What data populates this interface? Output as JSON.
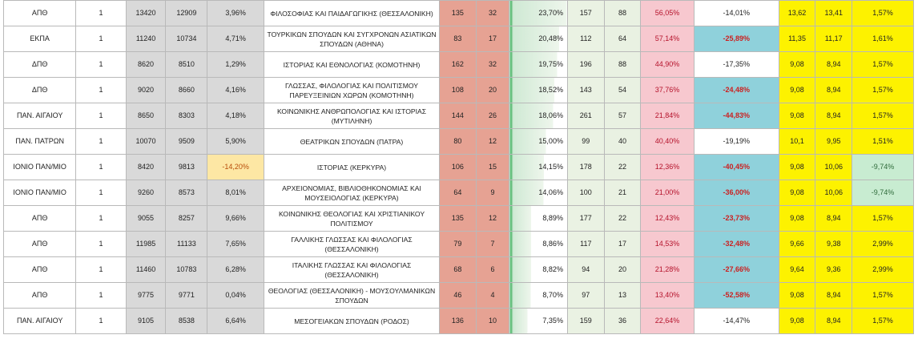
{
  "rows": [
    {
      "uni": "ΑΠΘ",
      "n": "1",
      "b1": "13420",
      "b2": "12909",
      "pct1": "3,96%",
      "dept": "ΦΙΛΟΣΟΦΙΑΣ ΚΑΙ ΠΑΙΔΑΓΩΓΙΚΗΣ (ΘΕΣΣΑΛΟΝΙΚΗ)",
      "a1": "135",
      "a2": "32",
      "pct2": "23,70%",
      "c1": "157",
      "c2": "88",
      "pct3": "56,05%",
      "chg": "-14,01%",
      "y1": "13,62",
      "y2": "13,41",
      "ypct": "1,57%"
    },
    {
      "uni": "ΕΚΠΑ",
      "n": "1",
      "b1": "11240",
      "b2": "10734",
      "pct1": "4,71%",
      "dept": "ΤΟΥΡΚΙΚΩΝ ΣΠΟΥΔΩΝ ΚΑΙ ΣΥΓΧΡΟΝΩΝ ΑΣΙΑΤΙΚΩΝ ΣΠΟΥΔΩΝ (ΑΘΗΝΑ)",
      "a1": "83",
      "a2": "17",
      "pct2": "20,48%",
      "c1": "112",
      "c2": "64",
      "pct3": "57,14%",
      "chg": "-25,89%",
      "y1": "11,35",
      "y2": "11,17",
      "ypct": "1,61%"
    },
    {
      "uni": "ΔΠΘ",
      "n": "1",
      "b1": "8620",
      "b2": "8510",
      "pct1": "1,29%",
      "dept": "ΙΣΤΟΡΙΑΣ ΚΑΙ ΕΘΝΟΛΟΓΙΑΣ (ΚΟΜΟΤΗΝΗ)",
      "a1": "162",
      "a2": "32",
      "pct2": "19,75%",
      "c1": "196",
      "c2": "88",
      "pct3": "44,90%",
      "chg": "-17,35%",
      "y1": "9,08",
      "y2": "8,94",
      "ypct": "1,57%"
    },
    {
      "uni": "ΔΠΘ",
      "n": "1",
      "b1": "9020",
      "b2": "8660",
      "pct1": "4,16%",
      "dept": "ΓΛΩΣΣΑΣ, ΦΙΛΟΛΟΓΙΑΣ ΚΑΙ ΠΟΛΙΤΙΣΜΟΥ ΠΑΡΕΥΞΕΙΝΙΩΝ ΧΩΡΩΝ (ΚΟΜΟΤΗΝΗ)",
      "a1": "108",
      "a2": "20",
      "pct2": "18,52%",
      "c1": "143",
      "c2": "54",
      "pct3": "37,76%",
      "chg": "-24,48%",
      "y1": "9,08",
      "y2": "8,94",
      "ypct": "1,57%"
    },
    {
      "uni": "ΠΑΝ. ΑΙΓΑΙΟΥ",
      "n": "1",
      "b1": "8650",
      "b2": "8303",
      "pct1": "4,18%",
      "dept": "ΚΟΙΝΩΝΙΚΗΣ ΑΝΘΡΩΠΟΛΟΓΙΑΣ ΚΑΙ ΙΣΤΟΡΙΑΣ (ΜΥΤΙΛΗΝΗ)",
      "a1": "144",
      "a2": "26",
      "pct2": "18,06%",
      "c1": "261",
      "c2": "57",
      "pct3": "21,84%",
      "chg": "-44,83%",
      "y1": "9,08",
      "y2": "8,94",
      "ypct": "1,57%"
    },
    {
      "uni": "ΠΑΝ. ΠΑΤΡΩΝ",
      "n": "1",
      "b1": "10070",
      "b2": "9509",
      "pct1": "5,90%",
      "dept": "ΘΕΑΤΡΙΚΩΝ ΣΠΟΥΔΩΝ (ΠΑΤΡΑ)",
      "a1": "80",
      "a2": "12",
      "pct2": "15,00%",
      "c1": "99",
      "c2": "40",
      "pct3": "40,40%",
      "chg": "-19,19%",
      "y1": "10,1",
      "y2": "9,95",
      "ypct": "1,51%"
    },
    {
      "uni": "ΙΟΝΙΟ ΠΑΝ/ΜΙΟ",
      "n": "1",
      "b1": "8420",
      "b2": "9813",
      "pct1": "-14,20%",
      "dept": "ΙΣΤΟΡΙΑΣ (ΚΕΡΚΥΡΑ)",
      "a1": "106",
      "a2": "15",
      "pct2": "14,15%",
      "c1": "178",
      "c2": "22",
      "pct3": "12,36%",
      "chg": "-40,45%",
      "y1": "9,08",
      "y2": "10,06",
      "ypct": "-9,74%"
    },
    {
      "uni": "ΙΟΝΙΟ ΠΑΝ/ΜΙΟ",
      "n": "1",
      "b1": "9260",
      "b2": "8573",
      "pct1": "8,01%",
      "dept": "ΑΡΧΕΙΟΝΟΜΙΑΣ, ΒΙΒΛΙΟΘΗΚΟΝΟΜΙΑΣ ΚΑΙ ΜΟΥΣΕΙΟΛΟΓΙΑΣ (ΚΕΡΚΥΡΑ)",
      "a1": "64",
      "a2": "9",
      "pct2": "14,06%",
      "c1": "100",
      "c2": "21",
      "pct3": "21,00%",
      "chg": "-36,00%",
      "y1": "9,08",
      "y2": "10,06",
      "ypct": "-9,74%"
    },
    {
      "uni": "ΑΠΘ",
      "n": "1",
      "b1": "9055",
      "b2": "8257",
      "pct1": "9,66%",
      "dept": "ΚΟΙΝΩΝΙΚΗΣ ΘΕΟΛΟΓΙΑΣ ΚΑΙ ΧΡΙΣΤΙΑΝΙΚΟΥ ΠΟΛΙΤΙΣΜΟΥ",
      "a1": "135",
      "a2": "12",
      "pct2": "8,89%",
      "c1": "177",
      "c2": "22",
      "pct3": "12,43%",
      "chg": "-23,73%",
      "y1": "9,08",
      "y2": "8,94",
      "ypct": "1,57%"
    },
    {
      "uni": "ΑΠΘ",
      "n": "1",
      "b1": "11985",
      "b2": "11133",
      "pct1": "7,65%",
      "dept": "ΓΑΛΛΙΚΗΣ ΓΛΩΣΣΑΣ ΚΑΙ ΦΙΛΟΛΟΓΙΑΣ (ΘΕΣΣΑΛΟΝΙΚΗ)",
      "a1": "79",
      "a2": "7",
      "pct2": "8,86%",
      "c1": "117",
      "c2": "17",
      "pct3": "14,53%",
      "chg": "-32,48%",
      "y1": "9,66",
      "y2": "9,38",
      "ypct": "2,99%"
    },
    {
      "uni": "ΑΠΘ",
      "n": "1",
      "b1": "11460",
      "b2": "10783",
      "pct1": "6,28%",
      "dept": "ΙΤΑΛΙΚΗΣ ΓΛΩΣΣΑΣ ΚΑΙ ΦΙΛΟΛΟΓΙΑΣ (ΘΕΣΣΑΛΟΝΙΚΗ)",
      "a1": "68",
      "a2": "6",
      "pct2": "8,82%",
      "c1": "94",
      "c2": "20",
      "pct3": "21,28%",
      "chg": "-27,66%",
      "y1": "9,64",
      "y2": "9,36",
      "ypct": "2,99%"
    },
    {
      "uni": "ΑΠΘ",
      "n": "1",
      "b1": "9775",
      "b2": "9771",
      "pct1": "0,04%",
      "dept": "ΘΕΟΛΟΓΙΑΣ (ΘΕΣΣΑΛΟΝΙΚΗ) - ΜΟΥΣΟΥΛΜΑΝΙΚΩΝ ΣΠΟΥΔΩΝ",
      "a1": "46",
      "a2": "4",
      "pct2": "8,70%",
      "c1": "97",
      "c2": "13",
      "pct3": "13,40%",
      "chg": "-52,58%",
      "y1": "9,08",
      "y2": "8,94",
      "ypct": "1,57%"
    },
    {
      "uni": "ΠΑΝ. ΑΙΓΑΙΟΥ",
      "n": "1",
      "b1": "9105",
      "b2": "8538",
      "pct1": "6,64%",
      "dept": "ΜΕΣΟΓΕΙΑΚΩΝ ΣΠΟΥΔΩΝ (ΡΟΔΟΣ)",
      "a1": "136",
      "a2": "10",
      "pct2": "7,35%",
      "c1": "159",
      "c2": "36",
      "pct3": "22,64%",
      "chg": "-14,47%",
      "y1": "9,08",
      "y2": "8,94",
      "ypct": "1,57%"
    }
  ],
  "highlights": {
    "chg_blue_red": [
      1,
      3,
      4,
      6,
      7,
      8,
      9,
      10,
      11
    ],
    "pct1_orange": [
      6
    ],
    "ypct_green": [
      6,
      7
    ],
    "pct3_pink": [
      0,
      1,
      2,
      3,
      4,
      5,
      6,
      7,
      8,
      9,
      10,
      11,
      12
    ]
  },
  "colors": {
    "gray": "#d9d9d9",
    "salmon": "#e6a293",
    "pink": "#f7c8cf",
    "blue": "#8fd1db",
    "yellow": "#fdf200",
    "databar": "#63be7b"
  }
}
